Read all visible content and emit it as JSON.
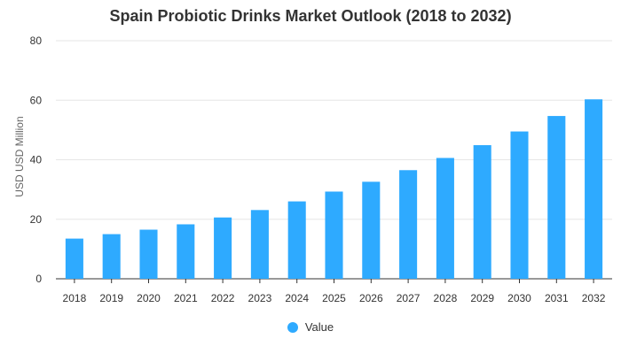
{
  "chart_data": {
    "type": "bar",
    "title": "Spain Probiotic Drinks Market Outlook (2018 to 2032)",
    "xlabel": "",
    "ylabel": "USD USD Million",
    "categories": [
      "2018",
      "2019",
      "2020",
      "2021",
      "2022",
      "2023",
      "2024",
      "2025",
      "2026",
      "2027",
      "2028",
      "2029",
      "2030",
      "2031",
      "2032"
    ],
    "series": [
      {
        "name": "Value",
        "values": [
          13.5,
          15.0,
          16.5,
          18.3,
          20.6,
          23.1,
          26.0,
          29.3,
          32.6,
          36.5,
          40.6,
          44.9,
          49.5,
          54.7,
          60.3
        ]
      }
    ],
    "ylim": [
      0,
      80
    ],
    "yticks": [
      0,
      20,
      40,
      60,
      80
    ],
    "grid": true,
    "legend": "bottom-center",
    "colors": {
      "bar": "#2eaaff",
      "grid": "#e6e6e6",
      "axis": "#333333"
    }
  }
}
